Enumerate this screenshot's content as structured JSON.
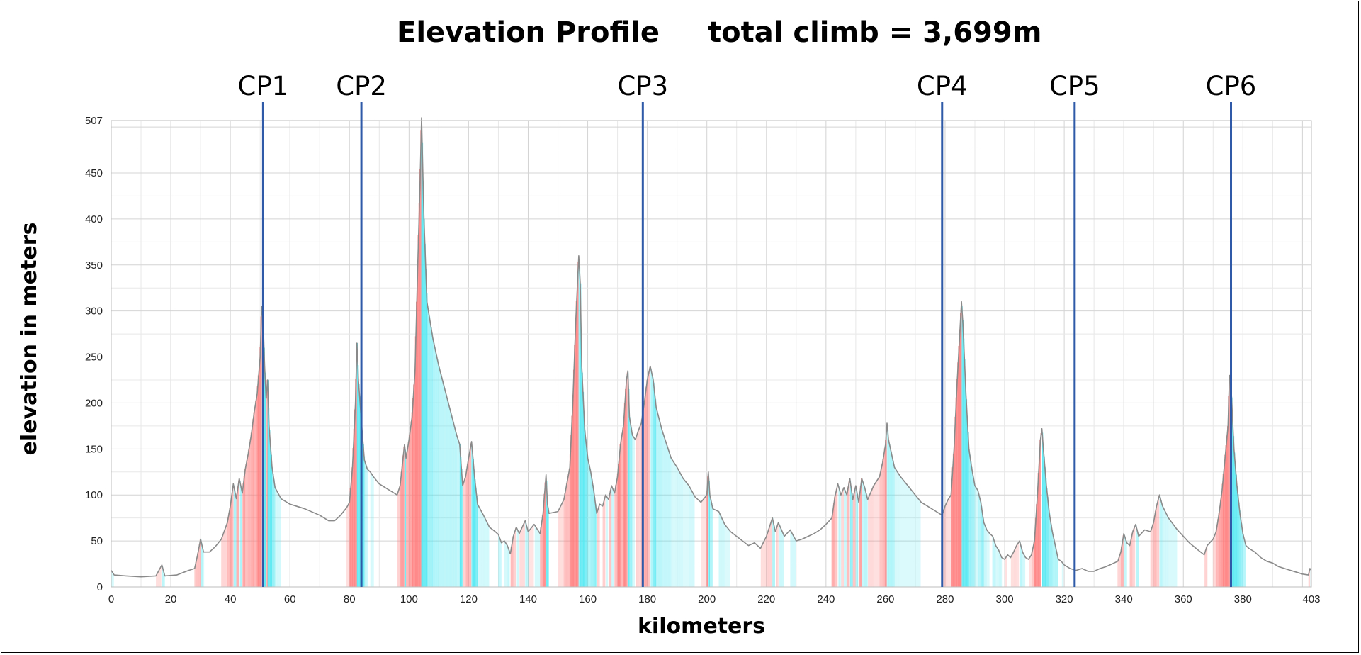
{
  "chart_data": {
    "type": "area",
    "title": "Elevation Profile",
    "subtitle": "total climb = 3,699m",
    "xlabel": "kilometers",
    "ylabel": "elevation in meters",
    "xlim": [
      0,
      403
    ],
    "ylim": [
      0,
      507
    ],
    "x_ticks": [
      0,
      20,
      40,
      60,
      80,
      100,
      120,
      140,
      160,
      180,
      200,
      220,
      240,
      260,
      280,
      300,
      320,
      340,
      360,
      380,
      403
    ],
    "y_ticks": [
      0,
      50,
      100,
      150,
      200,
      250,
      300,
      350,
      400,
      450,
      507
    ],
    "grid": true,
    "line_color": "#8a8a8a",
    "climb_color": "#ff7b7b",
    "descent_color": "#4fe8f2",
    "checkpoint_color": "#2f5aa8",
    "checkpoints": [
      {
        "label": "CP1",
        "km": 51
      },
      {
        "label": "CP2",
        "km": 84
      },
      {
        "label": "CP3",
        "km": 178.5
      },
      {
        "label": "CP4",
        "km": 279
      },
      {
        "label": "CP5",
        "km": 323.5
      },
      {
        "label": "CP6",
        "km": 376
      }
    ],
    "profile": [
      [
        0,
        18
      ],
      [
        1,
        13
      ],
      [
        5,
        12
      ],
      [
        10,
        11
      ],
      [
        15,
        12
      ],
      [
        16,
        18
      ],
      [
        17,
        24
      ],
      [
        18,
        12
      ],
      [
        22,
        13
      ],
      [
        26,
        18
      ],
      [
        28,
        20
      ],
      [
        29,
        35
      ],
      [
        30,
        52
      ],
      [
        31,
        38
      ],
      [
        33,
        38
      ],
      [
        35,
        44
      ],
      [
        37,
        52
      ],
      [
        39,
        70
      ],
      [
        40,
        88
      ],
      [
        41,
        112
      ],
      [
        42,
        96
      ],
      [
        43,
        118
      ],
      [
        44,
        102
      ],
      [
        45,
        128
      ],
      [
        46,
        145
      ],
      [
        47,
        165
      ],
      [
        48,
        190
      ],
      [
        49,
        210
      ],
      [
        50,
        250
      ],
      [
        50.5,
        305
      ],
      [
        51,
        290
      ],
      [
        51.5,
        240
      ],
      [
        52,
        205
      ],
      [
        52.5,
        225
      ],
      [
        53,
        175
      ],
      [
        54,
        130
      ],
      [
        55,
        108
      ],
      [
        57,
        96
      ],
      [
        60,
        90
      ],
      [
        65,
        85
      ],
      [
        70,
        78
      ],
      [
        73,
        72
      ],
      [
        75,
        72
      ],
      [
        77,
        78
      ],
      [
        79,
        86
      ],
      [
        80,
        92
      ],
      [
        81,
        130
      ],
      [
        82,
        200
      ],
      [
        82.5,
        265
      ],
      [
        83,
        225
      ],
      [
        84,
        180
      ],
      [
        85,
        138
      ],
      [
        86,
        128
      ],
      [
        87,
        125
      ],
      [
        88,
        120
      ],
      [
        90,
        112
      ],
      [
        92,
        108
      ],
      [
        94,
        104
      ],
      [
        96,
        100
      ],
      [
        97,
        110
      ],
      [
        98,
        140
      ],
      [
        98.5,
        155
      ],
      [
        99,
        140
      ],
      [
        100,
        160
      ],
      [
        101,
        185
      ],
      [
        102,
        235
      ],
      [
        103,
        360
      ],
      [
        103.7,
        440
      ],
      [
        104.2,
        510
      ],
      [
        105,
        400
      ],
      [
        106,
        310
      ],
      [
        108,
        270
      ],
      [
        110,
        240
      ],
      [
        112,
        215
      ],
      [
        114,
        190
      ],
      [
        116,
        165
      ],
      [
        117,
        155
      ],
      [
        118,
        110
      ],
      [
        119,
        120
      ],
      [
        120,
        140
      ],
      [
        121,
        158
      ],
      [
        122,
        120
      ],
      [
        123,
        90
      ],
      [
        125,
        78
      ],
      [
        127,
        65
      ],
      [
        129,
        60
      ],
      [
        130,
        57
      ],
      [
        131,
        48
      ],
      [
        132,
        50
      ],
      [
        133,
        45
      ],
      [
        134,
        36
      ],
      [
        135,
        55
      ],
      [
        136,
        65
      ],
      [
        137,
        58
      ],
      [
        139,
        72
      ],
      [
        140,
        60
      ],
      [
        142,
        68
      ],
      [
        144,
        58
      ],
      [
        145,
        80
      ],
      [
        146,
        122
      ],
      [
        146.5,
        90
      ],
      [
        147,
        80
      ],
      [
        150,
        82
      ],
      [
        152,
        95
      ],
      [
        154,
        130
      ],
      [
        155,
        200
      ],
      [
        156,
        290
      ],
      [
        157,
        360
      ],
      [
        157.5,
        330
      ],
      [
        158,
        240
      ],
      [
        159,
        170
      ],
      [
        160,
        140
      ],
      [
        161,
        125
      ],
      [
        162,
        105
      ],
      [
        163,
        80
      ],
      [
        164,
        90
      ],
      [
        165,
        88
      ],
      [
        166,
        100
      ],
      [
        167,
        95
      ],
      [
        168,
        110
      ],
      [
        169,
        102
      ],
      [
        170,
        120
      ],
      [
        171,
        155
      ],
      [
        172,
        175
      ],
      [
        173,
        225
      ],
      [
        173.5,
        235
      ],
      [
        174,
        185
      ],
      [
        175,
        165
      ],
      [
        176,
        160
      ],
      [
        177,
        170
      ],
      [
        178,
        178
      ],
      [
        179,
        200
      ],
      [
        180,
        225
      ],
      [
        181,
        240
      ],
      [
        182,
        225
      ],
      [
        183,
        195
      ],
      [
        185,
        170
      ],
      [
        188,
        140
      ],
      [
        190,
        130
      ],
      [
        192,
        118
      ],
      [
        194,
        110
      ],
      [
        196,
        98
      ],
      [
        198,
        92
      ],
      [
        200,
        100
      ],
      [
        200.5,
        125
      ],
      [
        201,
        100
      ],
      [
        202,
        85
      ],
      [
        204,
        82
      ],
      [
        206,
        68
      ],
      [
        208,
        60
      ],
      [
        210,
        55
      ],
      [
        212,
        50
      ],
      [
        214,
        45
      ],
      [
        216,
        48
      ],
      [
        218,
        42
      ],
      [
        220,
        55
      ],
      [
        222,
        75
      ],
      [
        223,
        60
      ],
      [
        224,
        70
      ],
      [
        226,
        55
      ],
      [
        228,
        62
      ],
      [
        230,
        50
      ],
      [
        232,
        52
      ],
      [
        234,
        55
      ],
      [
        236,
        58
      ],
      [
        238,
        62
      ],
      [
        240,
        68
      ],
      [
        242,
        75
      ],
      [
        243,
        98
      ],
      [
        244,
        112
      ],
      [
        245,
        100
      ],
      [
        246,
        108
      ],
      [
        247,
        100
      ],
      [
        248,
        118
      ],
      [
        249,
        95
      ],
      [
        250,
        110
      ],
      [
        251,
        92
      ],
      [
        252,
        118
      ],
      [
        253,
        108
      ],
      [
        254,
        95
      ],
      [
        256,
        110
      ],
      [
        258,
        120
      ],
      [
        259,
        135
      ],
      [
        260,
        155
      ],
      [
        260.5,
        178
      ],
      [
        261,
        160
      ],
      [
        262,
        145
      ],
      [
        263,
        130
      ],
      [
        265,
        120
      ],
      [
        268,
        108
      ],
      [
        270,
        100
      ],
      [
        272,
        92
      ],
      [
        274,
        88
      ],
      [
        276,
        84
      ],
      [
        278,
        80
      ],
      [
        279,
        78
      ],
      [
        280,
        88
      ],
      [
        281,
        95
      ],
      [
        282,
        100
      ],
      [
        283,
        150
      ],
      [
        284,
        220
      ],
      [
        285,
        280
      ],
      [
        285.5,
        310
      ],
      [
        286,
        285
      ],
      [
        287,
        210
      ],
      [
        288,
        150
      ],
      [
        289,
        128
      ],
      [
        290,
        110
      ],
      [
        291,
        105
      ],
      [
        292,
        92
      ],
      [
        293,
        70
      ],
      [
        294,
        62
      ],
      [
        295,
        58
      ],
      [
        296,
        55
      ],
      [
        297,
        45
      ],
      [
        298,
        40
      ],
      [
        299,
        32
      ],
      [
        300,
        30
      ],
      [
        301,
        35
      ],
      [
        302,
        32
      ],
      [
        303,
        38
      ],
      [
        304,
        45
      ],
      [
        305,
        50
      ],
      [
        306,
        38
      ],
      [
        307,
        32
      ],
      [
        308,
        30
      ],
      [
        309,
        35
      ],
      [
        310,
        50
      ],
      [
        311,
        100
      ],
      [
        312,
        160
      ],
      [
        312.5,
        172
      ],
      [
        313,
        150
      ],
      [
        314,
        110
      ],
      [
        315,
        80
      ],
      [
        316,
        60
      ],
      [
        317,
        45
      ],
      [
        318,
        30
      ],
      [
        319,
        28
      ],
      [
        320,
        24
      ],
      [
        322,
        20
      ],
      [
        324,
        18
      ],
      [
        326,
        20
      ],
      [
        328,
        17
      ],
      [
        330,
        17
      ],
      [
        332,
        20
      ],
      [
        334,
        22
      ],
      [
        336,
        25
      ],
      [
        338,
        28
      ],
      [
        339,
        38
      ],
      [
        340,
        58
      ],
      [
        341,
        48
      ],
      [
        342,
        45
      ],
      [
        343,
        60
      ],
      [
        344,
        68
      ],
      [
        345,
        55
      ],
      [
        347,
        62
      ],
      [
        349,
        60
      ],
      [
        350,
        70
      ],
      [
        351,
        88
      ],
      [
        352,
        100
      ],
      [
        353,
        88
      ],
      [
        355,
        75
      ],
      [
        358,
        62
      ],
      [
        360,
        55
      ],
      [
        362,
        48
      ],
      [
        365,
        40
      ],
      [
        367,
        35
      ],
      [
        368,
        45
      ],
      [
        370,
        52
      ],
      [
        371,
        60
      ],
      [
        372,
        80
      ],
      [
        373,
        105
      ],
      [
        374,
        140
      ],
      [
        375,
        175
      ],
      [
        375.5,
        230
      ],
      [
        376,
        220
      ],
      [
        377,
        150
      ],
      [
        378,
        110
      ],
      [
        379,
        80
      ],
      [
        380,
        58
      ],
      [
        381,
        45
      ],
      [
        382,
        42
      ],
      [
        384,
        38
      ],
      [
        386,
        32
      ],
      [
        388,
        28
      ],
      [
        390,
        26
      ],
      [
        392,
        22
      ],
      [
        394,
        20
      ],
      [
        396,
        18
      ],
      [
        398,
        16
      ],
      [
        400,
        14
      ],
      [
        402,
        13
      ],
      [
        402.5,
        20
      ],
      [
        403,
        18
      ]
    ]
  }
}
